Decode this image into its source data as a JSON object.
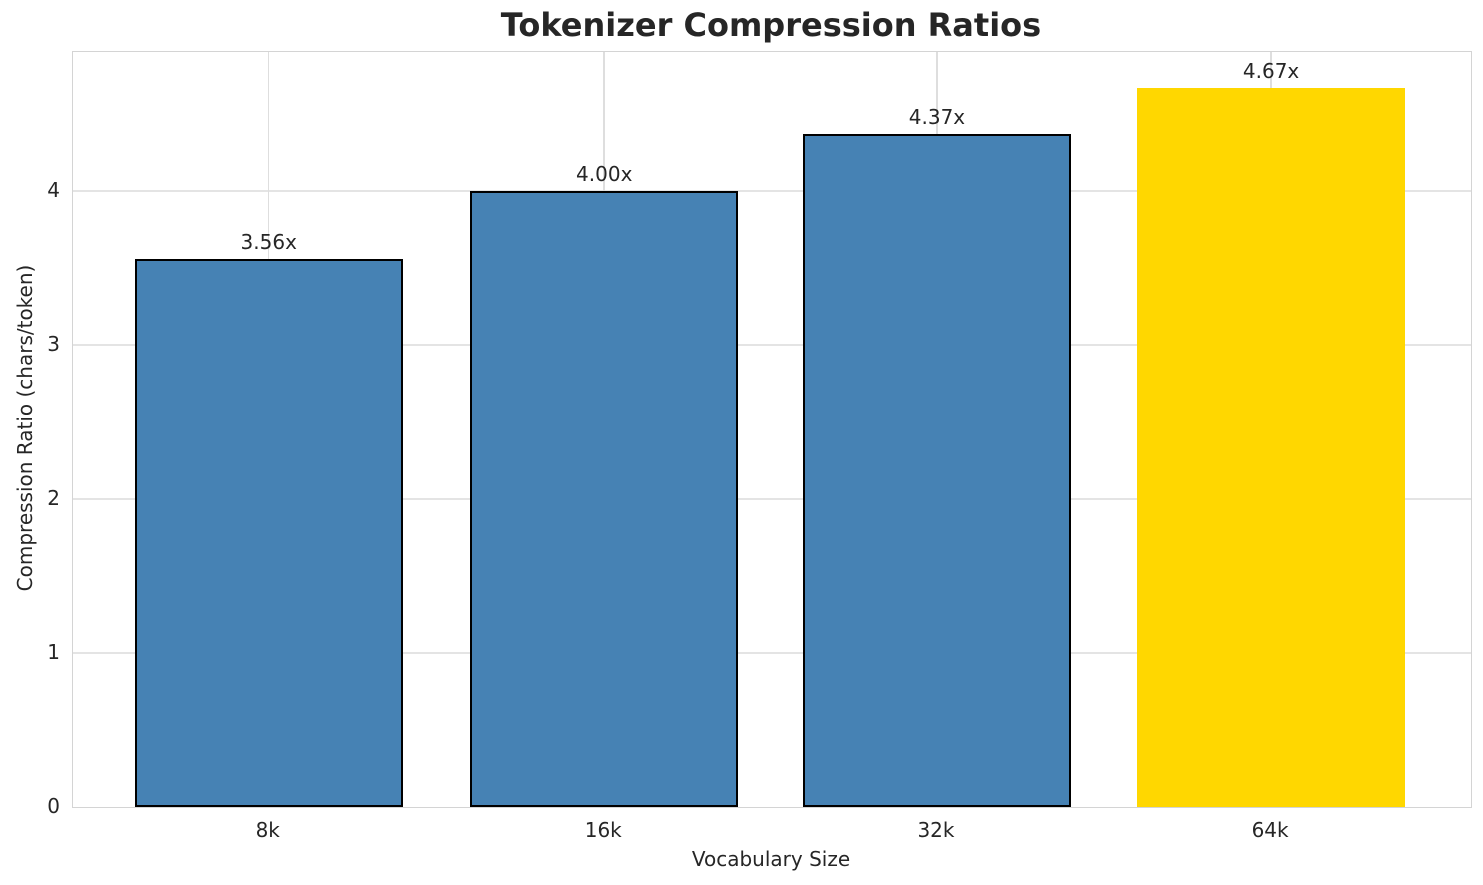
{
  "chart_data": {
    "type": "bar",
    "title": "Tokenizer Compression Ratios",
    "xlabel": "Vocabulary Size",
    "ylabel": "Compression Ratio (chars/token)",
    "categories": [
      "8k",
      "16k",
      "32k",
      "64k"
    ],
    "values": [
      3.56,
      4.0,
      4.37,
      4.67
    ],
    "bar_labels": [
      "3.56x",
      "4.00x",
      "4.37x",
      "4.67x"
    ],
    "yticks": [
      "0",
      "1",
      "2",
      "3",
      "4"
    ],
    "ytick_values": [
      0,
      1,
      2,
      3,
      4
    ],
    "ylim": [
      0,
      4.9
    ],
    "grid": true,
    "legend": "none",
    "highlight_index": 3,
    "colors": {
      "bar_default": "#4682B4",
      "bar_highlight": "#FFD700",
      "bar_edge": "#000000",
      "grid_h": "#E4E4E4",
      "grid_v": "#DEDEDE",
      "spine": "#D4D4D4",
      "text": "#262626"
    }
  }
}
